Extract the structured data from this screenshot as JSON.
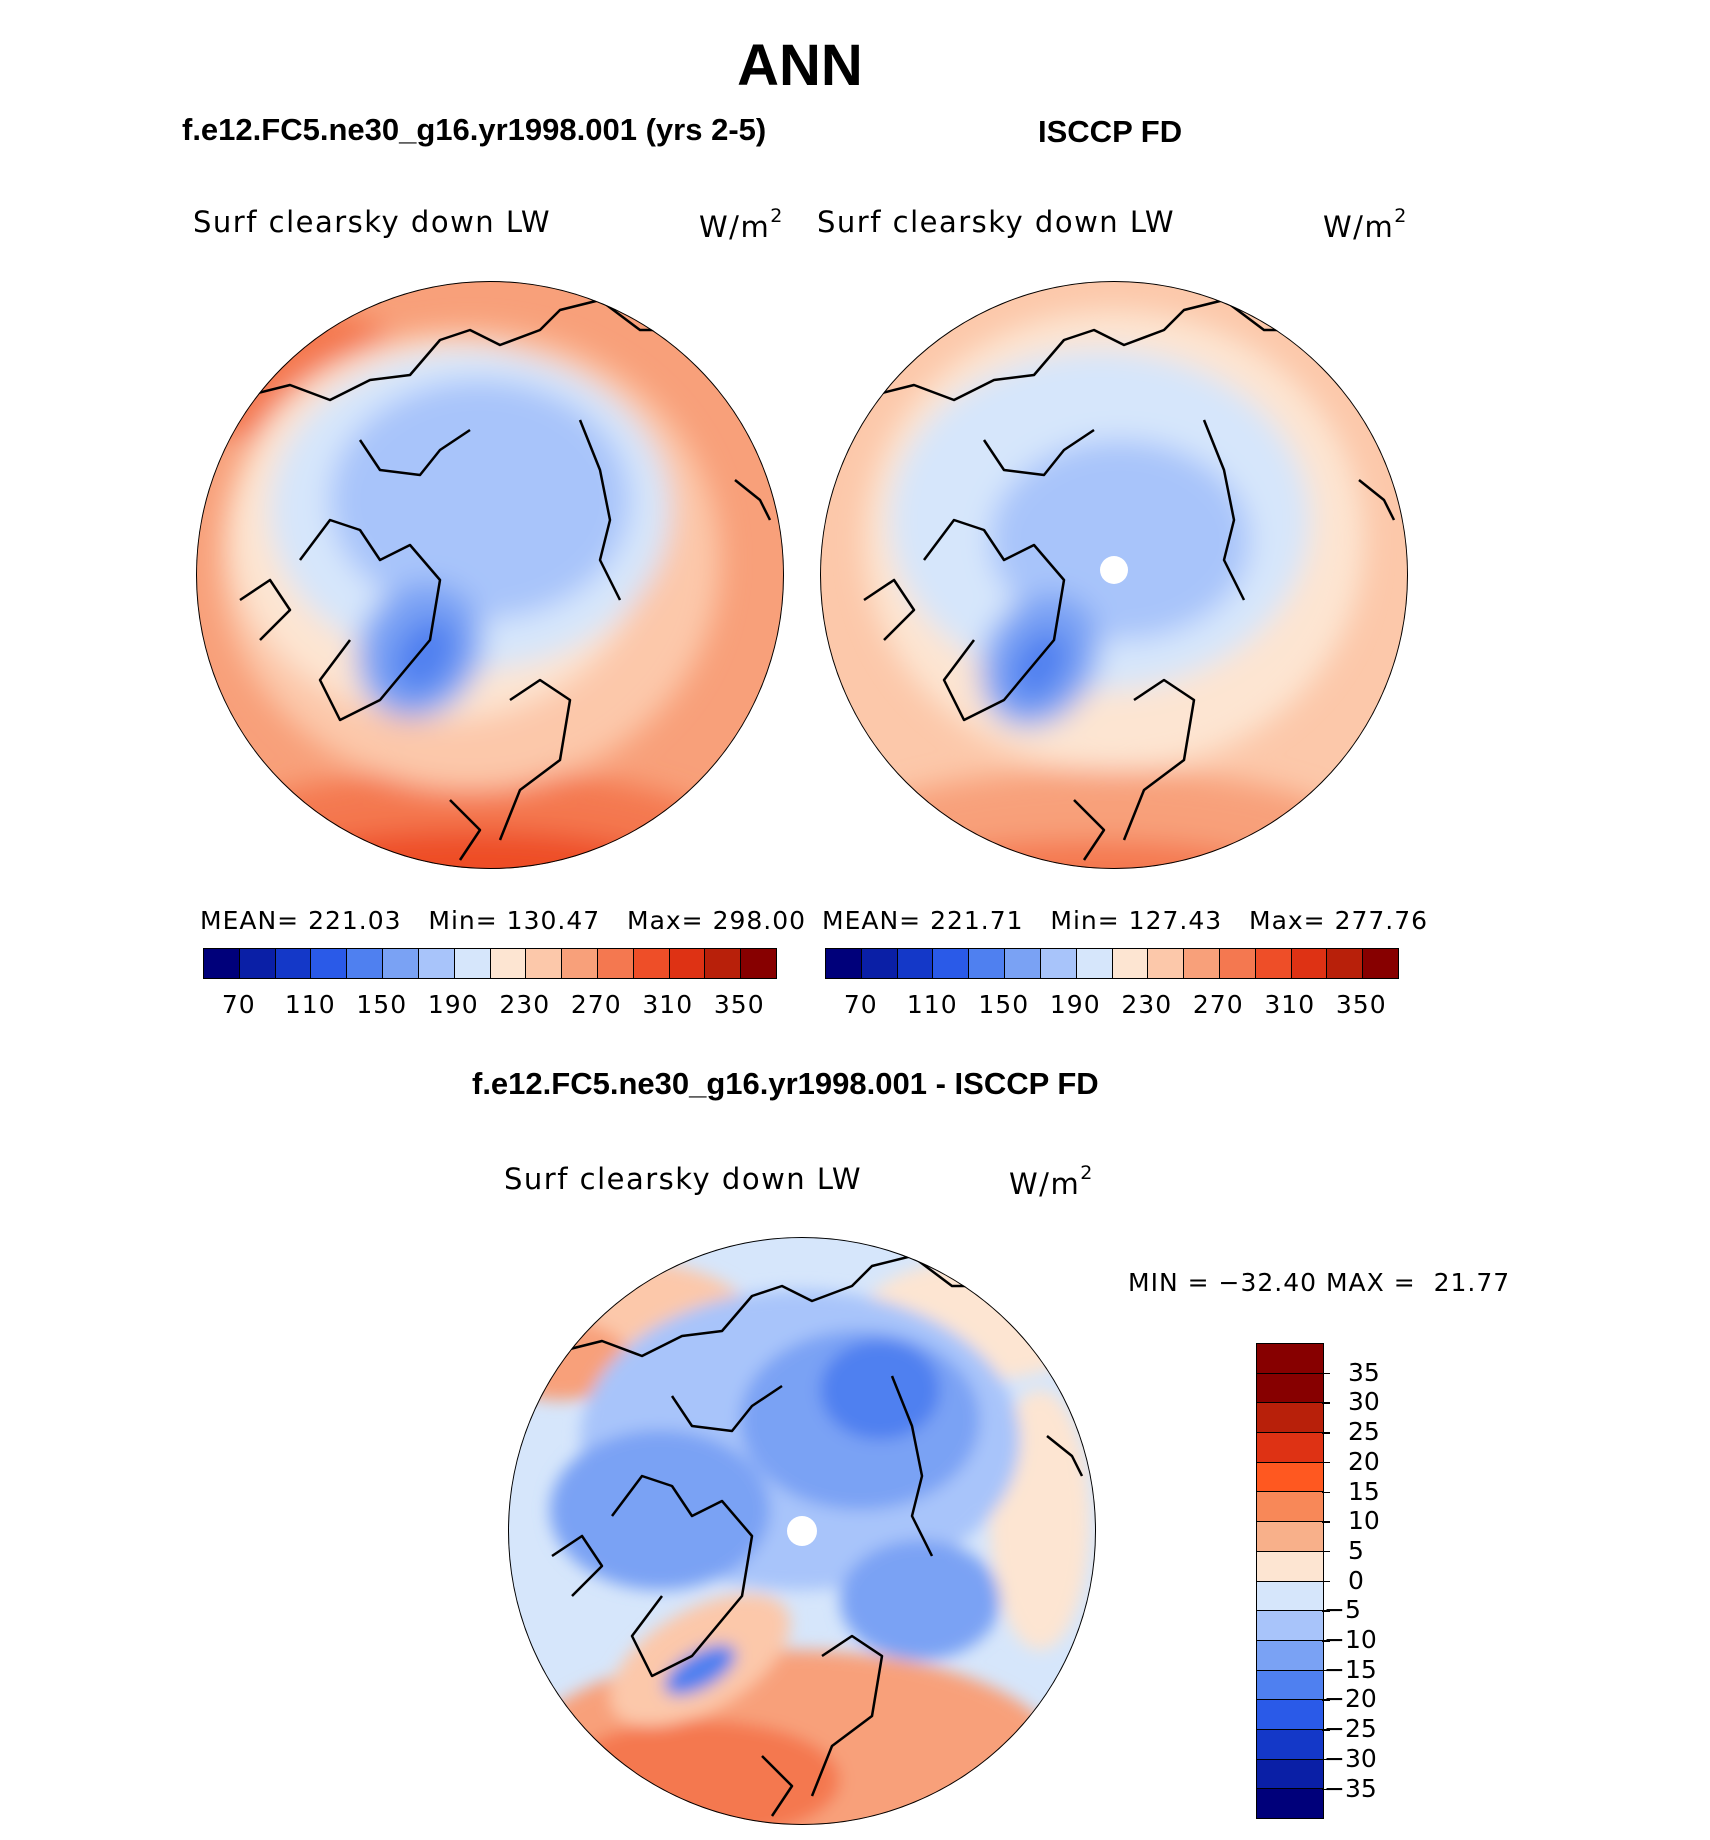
{
  "title": "ANN",
  "panels": {
    "model": {
      "case_title": "f.e12.FC5.ne30_g16.yr1998.001 (yrs 2-5)",
      "field": "Surf clearsky down LW",
      "units": "W/m",
      "units_exp": "2",
      "mean_label": "MEAN=",
      "mean": "221.03",
      "min_label": "Min=",
      "min": "130.47",
      "max_label": "Max=",
      "max": "298.00"
    },
    "obs": {
      "case_title": "ISCCP FD",
      "field": "Surf clearsky down LW",
      "units": "W/m",
      "units_exp": "2",
      "mean_label": "MEAN=",
      "mean": "221.71",
      "min_label": "Min=",
      "min": "127.43",
      "max_label": "Max=",
      "max": "277.76"
    },
    "diff": {
      "case_title": "f.e12.FC5.ne30_g16.yr1998.001 - ISCCP FD",
      "field": "Surf clearsky down LW",
      "units": "W/m",
      "units_exp": "2",
      "min_label": "MIN =",
      "min": "−32.40",
      "max_label": "MAX =",
      "max": "21.77"
    }
  },
  "abs_colorbar": {
    "colors": [
      "#00007a",
      "#0a1fa6",
      "#1438c8",
      "#2a5ae8",
      "#4f80f0",
      "#7aa2f4",
      "#a8c4fa",
      "#d6e6fb",
      "#fde5d2",
      "#fcc8aa",
      "#f8a07a",
      "#f47850",
      "#ee4e28",
      "#de3214",
      "#b8200a",
      "#870000"
    ],
    "labels": [
      "70",
      "110",
      "150",
      "190",
      "230",
      "270",
      "310",
      "350"
    ]
  },
  "diff_colorbar": {
    "colors": [
      "#870000",
      "#b8200a",
      "#de3214",
      "#ff5820",
      "#f88858",
      "#f8b08a",
      "#fde5d2",
      "#d6e6fb",
      "#a8c4fa",
      "#7aa2f4",
      "#4f80f0",
      "#2a5ae8",
      "#1438c8",
      "#0a1fa6",
      "#00007a"
    ],
    "labels": [
      "35",
      "30",
      "25",
      "20",
      "15",
      "10",
      "5",
      "0",
      "−5",
      "−10",
      "−15",
      "−20",
      "−25",
      "−30",
      "−35"
    ]
  }
}
